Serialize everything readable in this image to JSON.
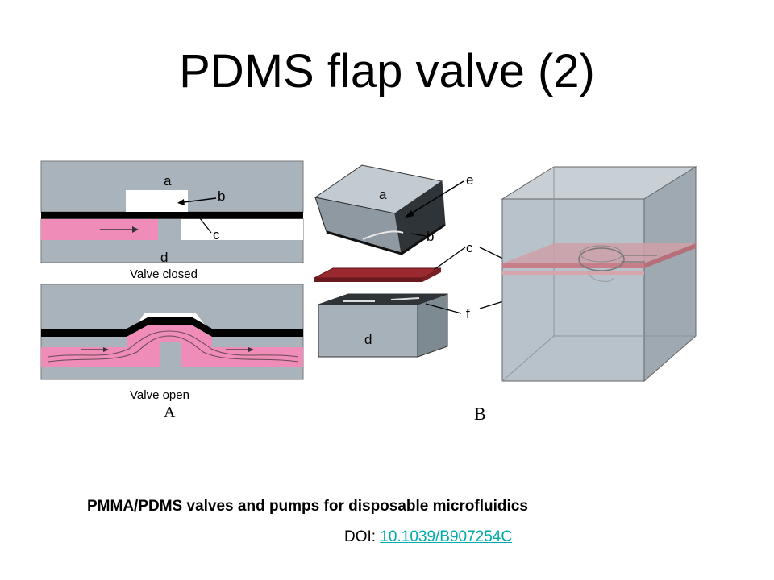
{
  "slide": {
    "title": "PDMS flap valve (2)",
    "caption": "PMMA/PDMS valves and pumps for disposable microfluidics",
    "doi_prefix": "DOI: ",
    "doi_link": "10.1039/B907254C"
  },
  "figure": {
    "panel_a": {
      "label": "A",
      "state_closed": "Valve closed",
      "state_open": "Valve open",
      "part_labels": [
        "a",
        "b",
        "c",
        "d"
      ]
    },
    "panel_b": {
      "label": "B",
      "part_labels": [
        "a",
        "b",
        "c",
        "d",
        "e",
        "f"
      ]
    },
    "colors": {
      "pmma_gray": "#a9b3bb",
      "membrane_black": "#000000",
      "fluid_pink": "#f08cb8",
      "membrane_red": "#9a2a30",
      "box_gray": "#b7c2ca"
    }
  }
}
